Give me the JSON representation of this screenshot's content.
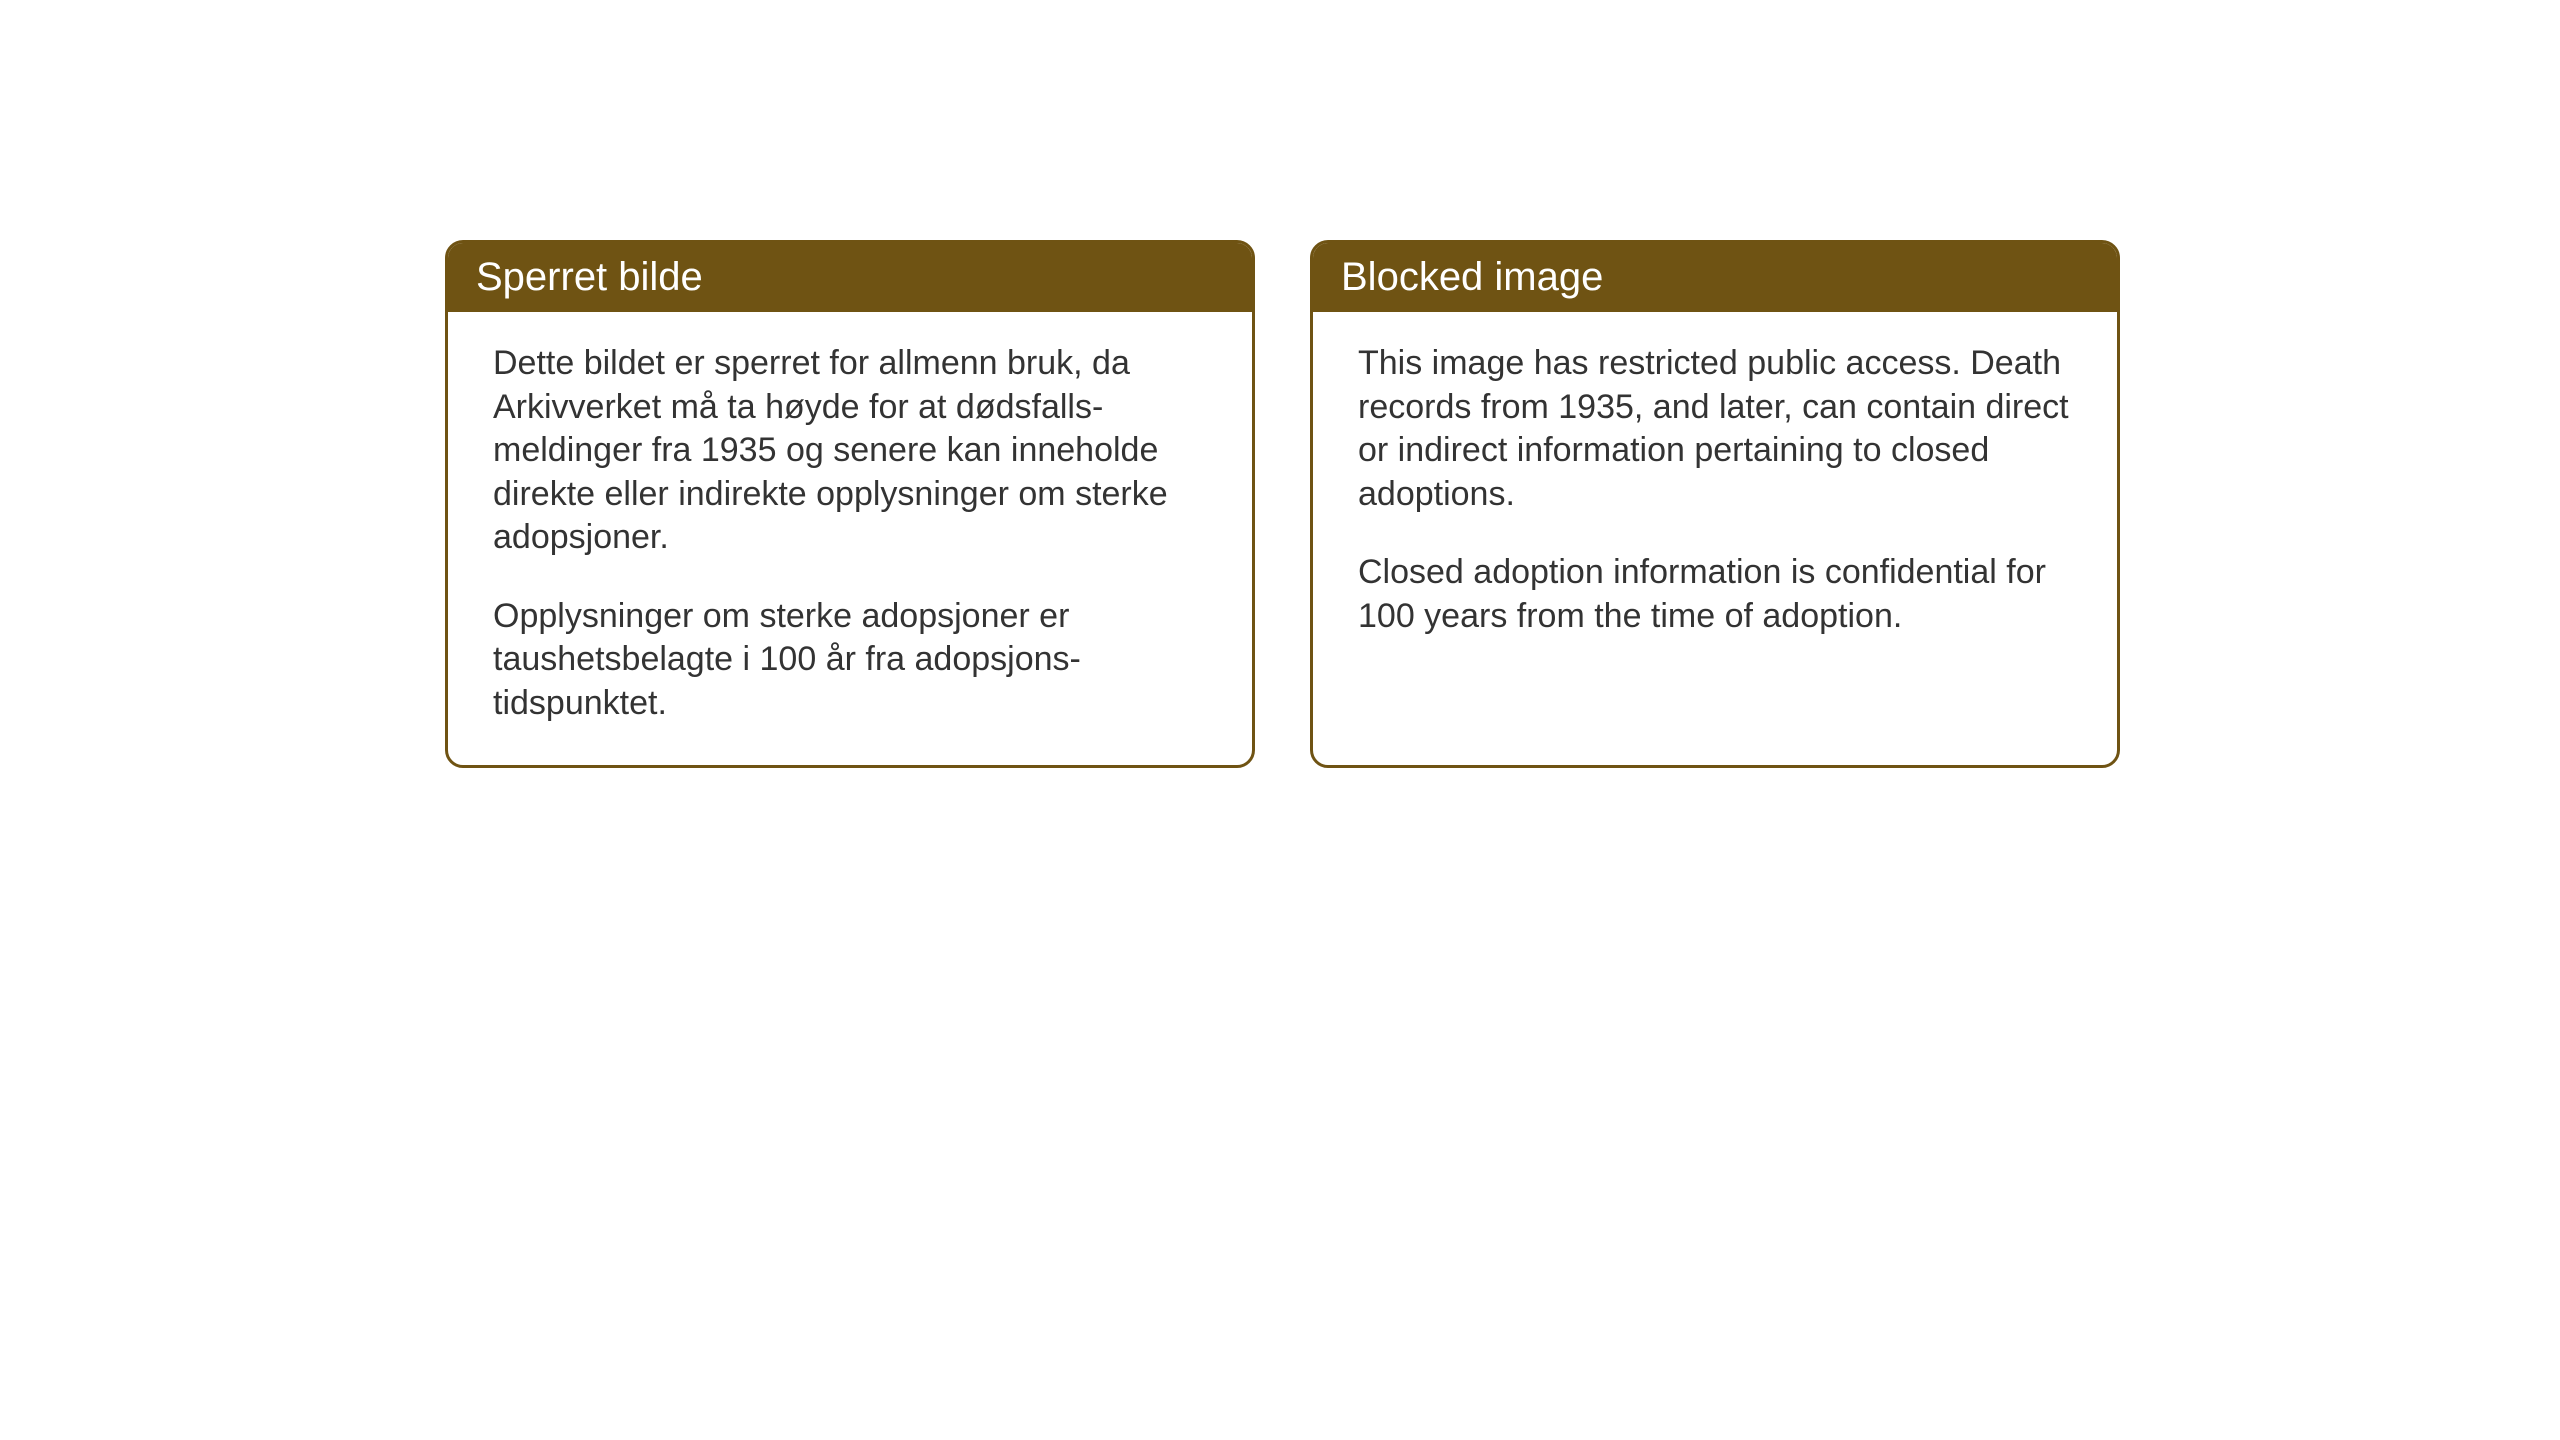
{
  "cards": {
    "header_bg_color": "#6f5313",
    "header_text_color": "#ffffff",
    "border_color": "#6f5313",
    "body_bg_color": "#ffffff",
    "body_text_color": "#333333",
    "border_radius": 18,
    "header_fontsize": 40,
    "body_fontsize": 34,
    "left": {
      "title": "Sperret bilde",
      "paragraph1": "Dette bildet er sperret for allmenn bruk, da Arkivverket må ta høyde for at dødsfalls-meldinger fra 1935 og senere kan inneholde direkte eller indirekte opplysninger om sterke adopsjoner.",
      "paragraph2": "Opplysninger om sterke adopsjoner er taushetsbelagte i 100 år fra adopsjons-tidspunktet."
    },
    "right": {
      "title": "Blocked image",
      "paragraph1": "This image has restricted public access. Death records from 1935, and later, can contain direct or indirect information pertaining to closed adoptions.",
      "paragraph2": "Closed adoption information is confidential for 100 years from the time of adoption."
    }
  }
}
